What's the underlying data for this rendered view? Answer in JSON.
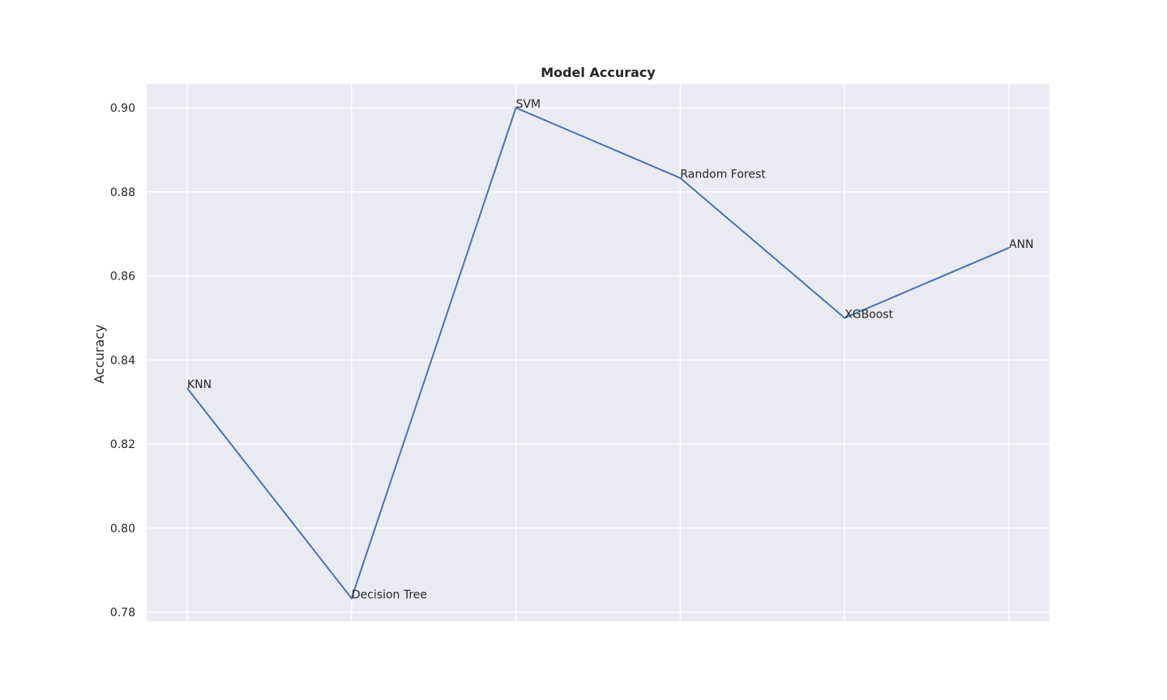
{
  "chart_data": {
    "type": "line",
    "title": "Model Accuracy",
    "xlabel": "",
    "ylabel": "Accuracy",
    "categories": [
      "KNN",
      "Decision Tree",
      "SVM",
      "Random Forest",
      "XGBoost",
      "ANN"
    ],
    "series": [
      {
        "values": [
          0.8333,
          0.7833,
          0.9,
          0.8833,
          0.85,
          0.8667
        ]
      }
    ],
    "yticks": [
      "0.78",
      "0.80",
      "0.82",
      "0.84",
      "0.86",
      "0.88",
      "0.90"
    ],
    "ylim": [
      0.7778,
      0.9056
    ],
    "grid": true,
    "x_tick_labels_shown": false,
    "point_labels": true,
    "colors": {
      "plot_background": "#eaeaf2",
      "grid": "#ffffff",
      "line": "#4c72b0",
      "text": "#262626"
    }
  }
}
